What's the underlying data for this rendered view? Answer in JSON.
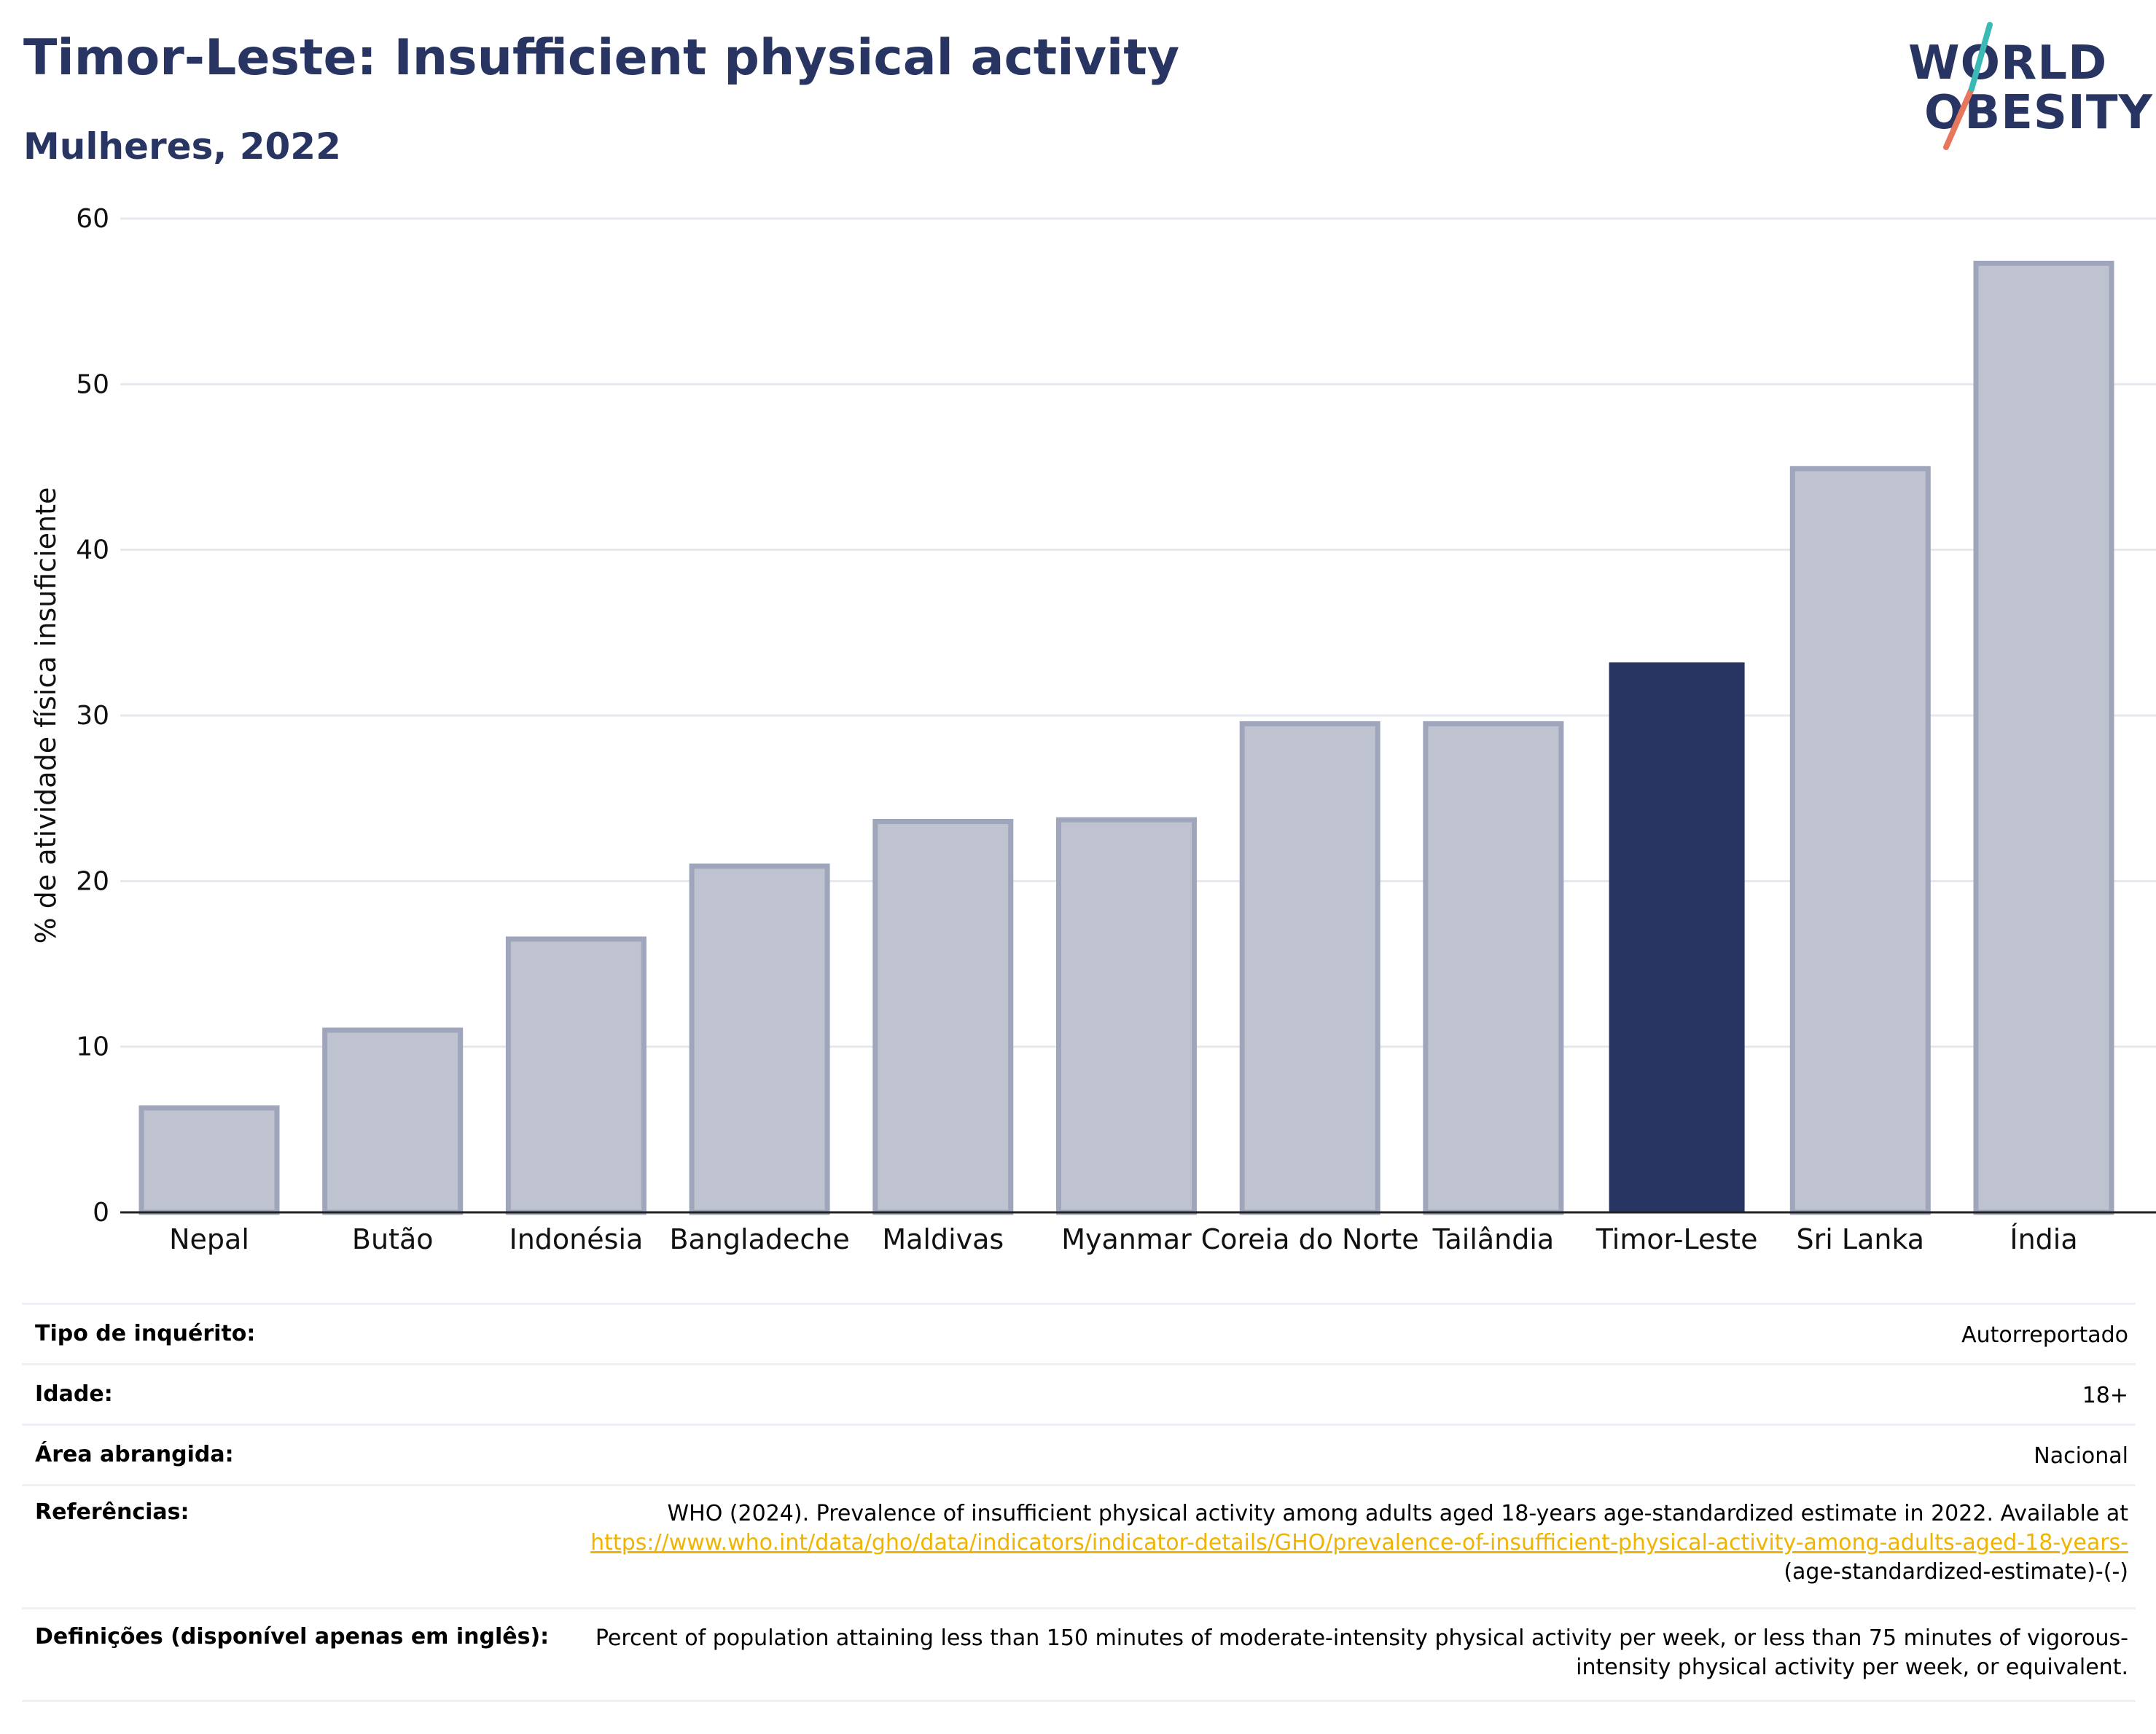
{
  "header": {
    "title": "Timor-Leste: Insufficient physical activity",
    "subtitle": "Mulheres, 2022"
  },
  "logo": {
    "line1": "WORLD",
    "line2": "OBESITY"
  },
  "colors": {
    "navy": "#283461",
    "bar_muted": "#bfc2cf",
    "bar_muted_border": "#9fa5bb",
    "accent_teal": "#3bb9b4",
    "accent_coral": "#e8765c",
    "link": "#f0b400"
  },
  "chart_data": {
    "type": "bar",
    "title": "",
    "xlabel": "",
    "ylabel": "% de atividade física insuficiente",
    "ylim": [
      0,
      60
    ],
    "yticks": [
      0,
      10,
      20,
      30,
      40,
      50,
      60
    ],
    "grid": true,
    "categories": [
      "Nepal",
      "Butão",
      "Indonésia",
      "Bangladeche",
      "Maldivas",
      "Myanmar",
      "Coreia do Norte",
      "Tailândia",
      "Timor-Leste",
      "Sri Lanka",
      "Índia"
    ],
    "values": [
      6.3,
      11.0,
      16.5,
      20.9,
      23.6,
      23.7,
      29.5,
      29.5,
      33.2,
      44.9,
      57.3
    ],
    "highlight": "Timor-Leste"
  },
  "details": {
    "survey_label": "Tipo de inquérito:",
    "survey_value": "Autorreportado",
    "age_label": "Idade:",
    "age_value": "18+",
    "area_label": "Área abrangida:",
    "area_value": "Nacional",
    "refs_label": "Referências:",
    "refs_text": "WHO (2024). Prevalence of insufficient physical activity among adults aged 18-years age-standardized estimate in 2022. Available at",
    "refs_link": "https://www.who.int/data/gho/data/indicators/indicator-details/GHO/prevalence-of-insufficient-physical-activity-among-adults-aged-18-years-",
    "refs_tail": "(age-standardized-estimate)-(-)",
    "defs_label": "Definições (disponível apenas em inglês):",
    "defs_value": "Percent of population attaining less than 150 minutes of moderate-intensity physical activity per week, or less than 75 minutes of vigorous-intensity physical activity per week, or equivalent."
  }
}
